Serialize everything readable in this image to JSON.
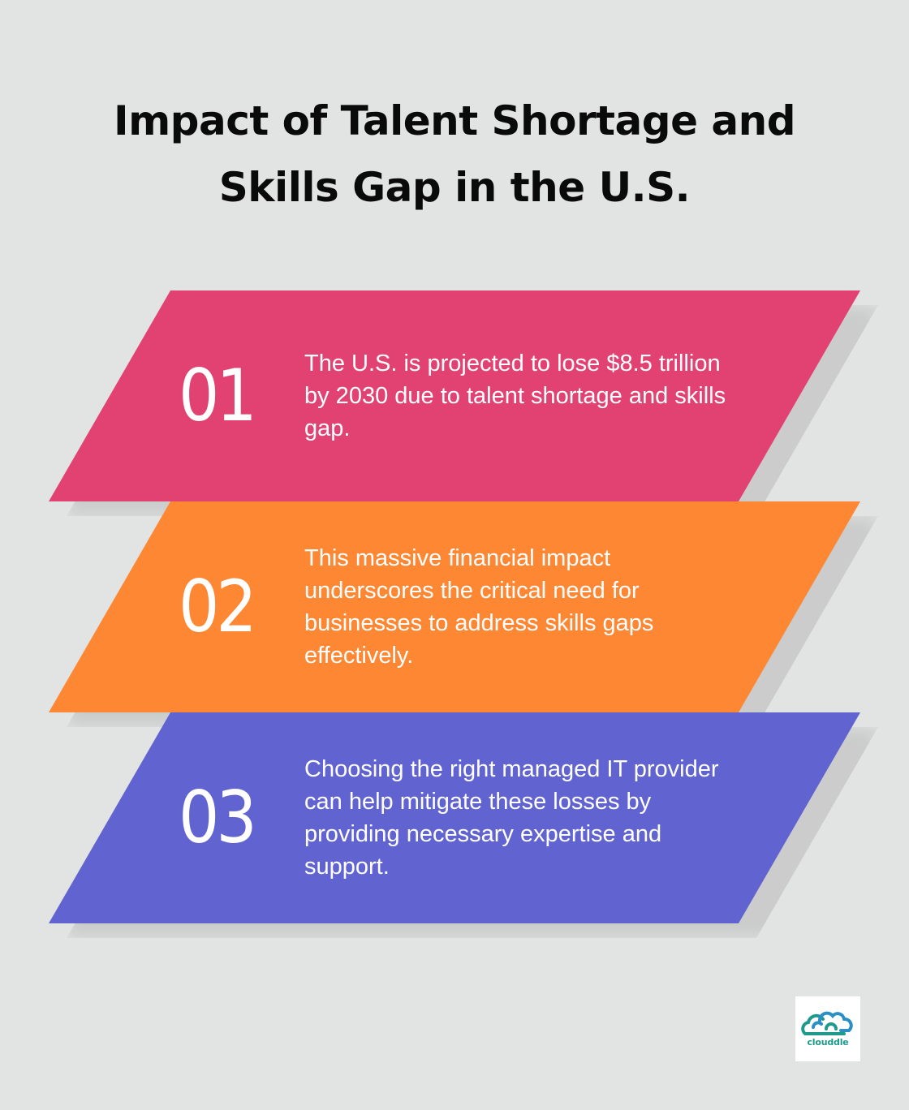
{
  "title": {
    "line1": "Impact of Talent Shortage and",
    "line2": "Skills Gap in the U.S."
  },
  "steps": [
    {
      "number": "01",
      "text": "The U.S. is projected to lose $8.5 trillion by 2030 due to talent shortage and skills gap.",
      "color": "#e24272"
    },
    {
      "number": "02",
      "text": "This massive financial impact underscores the critical need for businesses to address skills gaps effectively.",
      "color": "#fd8733"
    },
    {
      "number": "03",
      "text": "Choosing the right managed IT provider can help mitigate these losses by providing necessary expertise and support.",
      "color": "#6164d0"
    }
  ],
  "logo": {
    "text": "clouddle",
    "icon": "cloud-logo-icon",
    "colors": [
      "#2a8fc4",
      "#1f9a8a"
    ]
  },
  "background_color": "#e2e4e3"
}
